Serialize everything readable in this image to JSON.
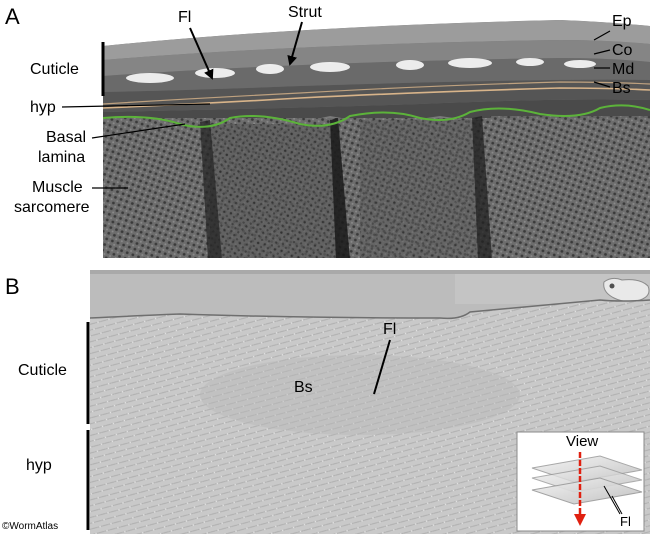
{
  "panel_a": {
    "letter": "A",
    "labels": {
      "fl": "Fl",
      "strut": "Strut",
      "ep": "Ep",
      "co": "Co",
      "md": "Md",
      "bs": "Bs",
      "cuticle": "Cuticle",
      "hyp": "hyp",
      "basal_line1": "Basal",
      "basal_line2": "lamina",
      "muscle_line1": "Muscle",
      "muscle_line2": "sarcomere"
    }
  },
  "panel_b": {
    "letter": "B",
    "labels": {
      "fl": "Fl",
      "bs": "Bs",
      "cuticle": "Cuticle",
      "hyp": "hyp"
    },
    "inset": {
      "view": "View",
      "fl": "Fl"
    }
  },
  "copyright": "©WormAtlas",
  "colors": {
    "hypodermis_outline": "#d8b48a",
    "basal_lamina_outline": "#5cb33a",
    "view_arrow": "#e02010"
  }
}
